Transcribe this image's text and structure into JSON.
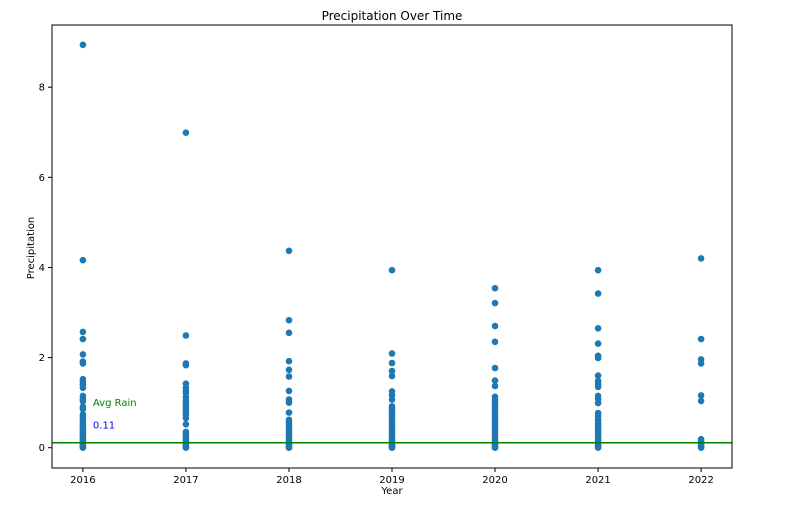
{
  "chart_data": {
    "type": "scatter",
    "title": "Precipitation Over Time",
    "xlabel": "Year",
    "ylabel": "Precipitation",
    "xlim": [
      2015.7,
      2022.3
    ],
    "ylim": [
      -0.45,
      9.38
    ],
    "xticks": [
      2016,
      2017,
      2018,
      2019,
      2020,
      2021,
      2022
    ],
    "yticks": [
      0,
      2,
      4,
      6,
      8
    ],
    "grid": false,
    "colors": {
      "points": "#1f77b4",
      "avg_line": "#008000",
      "avg_label": "#008000",
      "avg_value": "#0000ff"
    },
    "avg_line": {
      "y": 0.11,
      "label": "Avg Rain",
      "value_label": "0.11"
    },
    "series": [
      {
        "points": [
          {
            "year": 2016,
            "values": [
              8.94,
              4.16,
              2.57,
              2.41,
              2.07,
              1.91,
              1.87,
              1.52,
              1.46,
              1.4,
              1.33,
              1.15,
              1.08,
              1.03,
              0.91,
              0.86,
              0.74,
              0.69,
              0.63,
              0.57,
              0.52,
              0.47,
              0.42,
              0.38,
              0.34,
              0.3,
              0.26,
              0.22,
              0.18,
              0.15,
              0.12,
              0.09,
              0.06,
              0.03,
              0.01,
              0.0
            ]
          },
          {
            "year": 2017,
            "values": [
              6.99,
              2.49,
              1.87,
              1.83,
              1.42,
              1.33,
              1.27,
              1.21,
              1.12,
              1.05,
              0.99,
              0.92,
              0.86,
              0.8,
              0.74,
              0.66,
              0.52,
              0.35,
              0.3,
              0.25,
              0.2,
              0.15,
              0.1,
              0.06,
              0.03,
              0.01,
              0.0
            ]
          },
          {
            "year": 2018,
            "values": [
              4.37,
              2.83,
              2.55,
              1.92,
              1.73,
              1.58,
              1.26,
              1.07,
              1.0,
              0.78,
              0.62,
              0.56,
              0.5,
              0.45,
              0.4,
              0.35,
              0.3,
              0.25,
              0.2,
              0.15,
              0.11,
              0.08,
              0.05,
              0.03,
              0.01,
              0.0
            ]
          },
          {
            "year": 2019,
            "values": [
              3.94,
              2.09,
              1.88,
              1.7,
              1.59,
              1.25,
              1.17,
              1.07,
              0.92,
              0.87,
              0.82,
              0.77,
              0.72,
              0.67,
              0.62,
              0.56,
              0.51,
              0.45,
              0.4,
              0.35,
              0.3,
              0.25,
              0.2,
              0.15,
              0.11,
              0.08,
              0.05,
              0.03,
              0.01,
              0.0
            ]
          },
          {
            "year": 2020,
            "values": [
              3.54,
              3.21,
              2.7,
              2.35,
              1.77,
              1.49,
              1.37,
              1.13,
              1.06,
              1.0,
              0.95,
              0.9,
              0.85,
              0.8,
              0.75,
              0.7,
              0.65,
              0.6,
              0.55,
              0.5,
              0.45,
              0.4,
              0.35,
              0.3,
              0.25,
              0.2,
              0.15,
              0.11,
              0.08,
              0.05,
              0.03,
              0.01,
              0.0
            ]
          },
          {
            "year": 2021,
            "values": [
              3.94,
              3.42,
              2.65,
              2.31,
              2.04,
              1.99,
              1.6,
              1.48,
              1.41,
              1.35,
              1.15,
              1.08,
              0.99,
              0.77,
              0.7,
              0.62,
              0.56,
              0.51,
              0.46,
              0.41,
              0.36,
              0.31,
              0.26,
              0.21,
              0.16,
              0.12,
              0.08,
              0.05,
              0.02,
              0.0
            ]
          },
          {
            "year": 2022,
            "values": [
              4.2,
              2.41,
              1.96,
              1.87,
              1.16,
              1.04,
              0.19,
              0.14,
              0.09,
              0.05,
              0.02,
              0.0
            ]
          }
        ]
      }
    ]
  }
}
